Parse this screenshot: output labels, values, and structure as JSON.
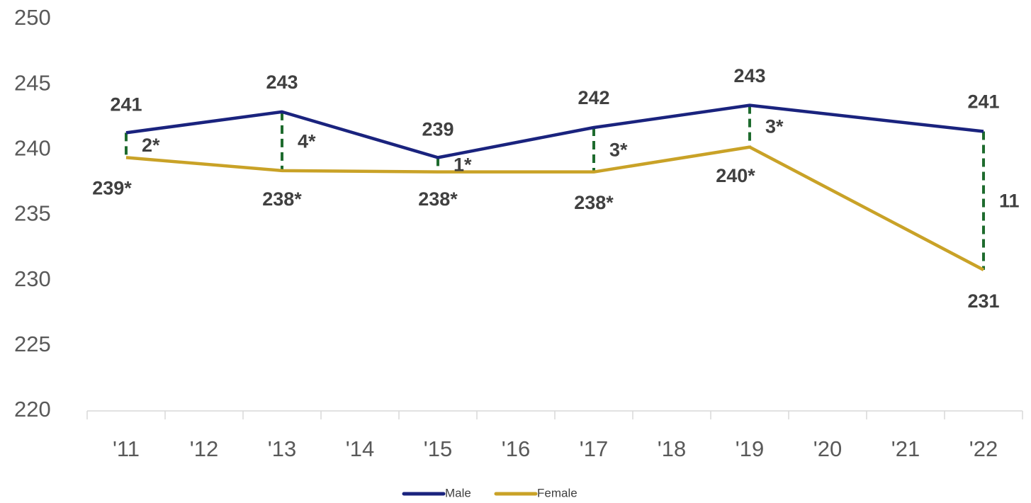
{
  "chart_data": {
    "type": "line",
    "x": [
      11,
      13,
      15,
      17,
      19,
      22
    ],
    "xlim": [
      10.5,
      22.5
    ],
    "xticks": [
      {
        "value": 11,
        "label": "'11"
      },
      {
        "value": 12,
        "label": "'12"
      },
      {
        "value": 13,
        "label": "'13"
      },
      {
        "value": 14,
        "label": "'14"
      },
      {
        "value": 15,
        "label": "'15"
      },
      {
        "value": 16,
        "label": "'16"
      },
      {
        "value": 17,
        "label": "'17"
      },
      {
        "value": 18,
        "label": "'18"
      },
      {
        "value": 19,
        "label": "'19"
      },
      {
        "value": 20,
        "label": "'20"
      },
      {
        "value": 21,
        "label": "'21"
      },
      {
        "value": 22,
        "label": "'22"
      }
    ],
    "ylim": [
      220,
      250
    ],
    "yticks": [
      220,
      225,
      230,
      235,
      240,
      245,
      250
    ],
    "series": [
      {
        "name": "Male",
        "color": "#1a237e",
        "values": [
          241.3,
          242.9,
          239.4,
          241.7,
          243.4,
          241.4
        ],
        "value_labels": [
          "241",
          "243",
          "239",
          "242",
          "243",
          "241"
        ]
      },
      {
        "name": "Female",
        "color": "#c9a227",
        "values": [
          239.4,
          238.4,
          238.3,
          238.3,
          240.2,
          230.8
        ],
        "value_labels": [
          "239*",
          "238*",
          "238*",
          "238*",
          "240*",
          "231"
        ]
      }
    ],
    "difference_color": "#1e6b2e",
    "difference_labels": [
      "2*",
      "4*",
      "1*",
      "3*",
      "3*",
      "11"
    ],
    "legend": "bottom"
  }
}
